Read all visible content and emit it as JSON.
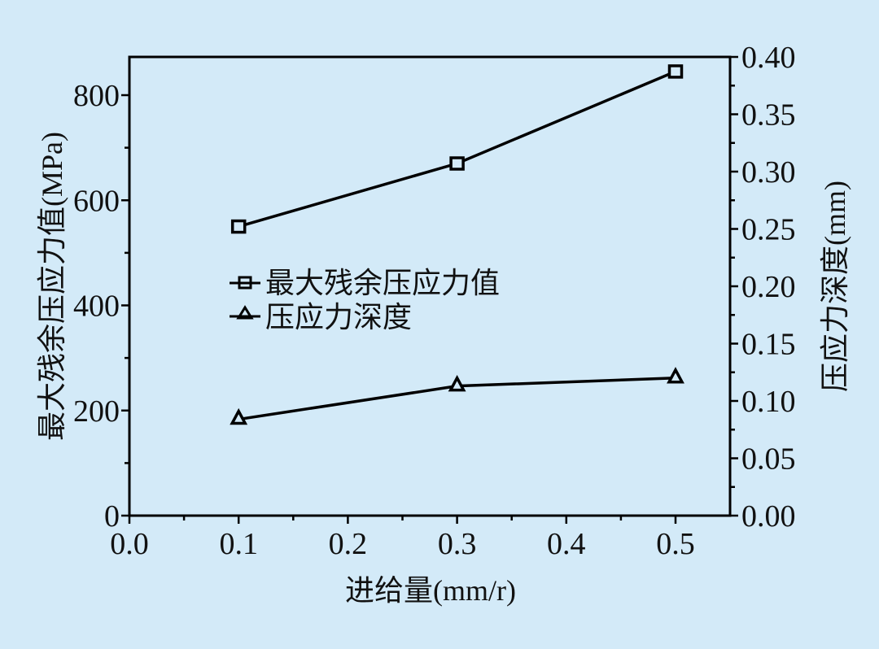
{
  "colors": {
    "background": "#d3eaf8",
    "plot_background": "#d3eaf8",
    "line": "#000000"
  },
  "chart_data": {
    "type": "line",
    "title": "",
    "xlabel": "进给量(mm/r)",
    "ylabel_left": "最大残余压应力值(MPa)",
    "ylabel_right": "压应力深度(mm)",
    "xlim": [
      0.0,
      0.55
    ],
    "ylim_left": [
      0,
      870
    ],
    "ylim_right": [
      0.0,
      0.4
    ],
    "x_ticks": [
      "0.0",
      "0.1",
      "0.2",
      "0.3",
      "0.4",
      "0.5"
    ],
    "y_left_ticks": [
      "0",
      "200",
      "400",
      "600",
      "800"
    ],
    "y_right_ticks": [
      "0.00",
      "0.05",
      "0.10",
      "0.15",
      "0.20",
      "0.25",
      "0.30",
      "0.35",
      "0.40"
    ],
    "grid": false,
    "legend_position": "center-left inside plot",
    "x": [
      0.1,
      0.3,
      0.5
    ],
    "series": [
      {
        "name": "最大残余压应力值",
        "axis": "left",
        "marker": "square",
        "values": [
          550,
          670,
          845
        ]
      },
      {
        "name": "压应力深度",
        "axis": "right",
        "marker": "triangle",
        "values": [
          0.084,
          0.113,
          0.12
        ]
      }
    ]
  }
}
